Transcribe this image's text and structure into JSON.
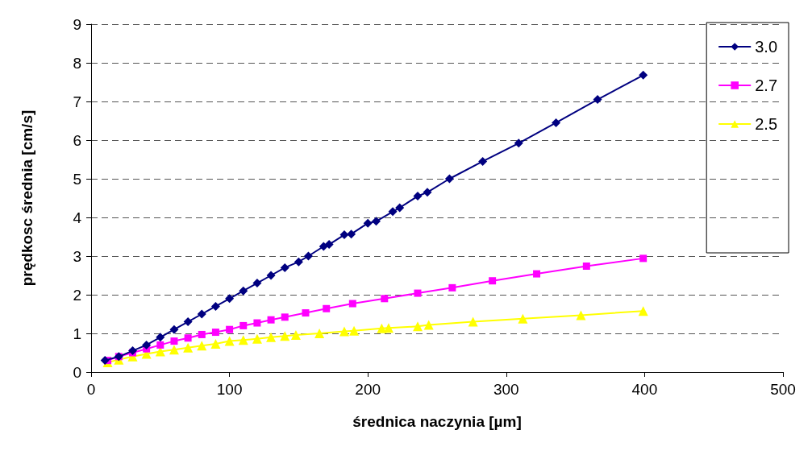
{
  "chart_data": {
    "type": "line",
    "xlabel": "średnica naczynia [µm]",
    "ylabel": "prędkosc średnia [cm/s]",
    "xlim": [
      0,
      500
    ],
    "xticks": [
      0,
      100,
      200,
      300,
      400,
      500
    ],
    "ylim": [
      0,
      9
    ],
    "yticks": [
      0,
      1,
      2,
      3,
      4,
      5,
      6,
      7,
      8,
      9
    ],
    "grid": "y",
    "legend": "top right",
    "series": [
      {
        "name": "3.0",
        "color": "#000080",
        "marker": "diamond",
        "x": [
          10,
          20,
          30,
          40,
          50,
          60,
          70,
          80,
          90,
          100,
          110,
          120,
          130,
          140,
          150,
          157,
          168,
          172,
          183,
          188,
          200,
          206,
          218,
          223,
          236,
          243,
          259,
          283,
          309,
          336,
          366,
          399
        ],
        "values": [
          0.3,
          0.4,
          0.55,
          0.7,
          0.9,
          1.1,
          1.3,
          1.5,
          1.7,
          1.9,
          2.1,
          2.3,
          2.5,
          2.7,
          2.85,
          3.0,
          3.25,
          3.3,
          3.55,
          3.57,
          3.85,
          3.9,
          4.15,
          4.25,
          4.55,
          4.65,
          5.0,
          5.45,
          5.92,
          6.45,
          7.05,
          7.68
        ]
      },
      {
        "name": "2.7",
        "color": "#ff00ff",
        "marker": "square",
        "x": [
          12,
          20,
          30,
          40,
          50,
          60,
          70,
          80,
          90,
          100,
          110,
          120,
          130,
          140,
          155,
          170,
          189,
          212,
          236,
          261,
          290,
          322,
          358,
          399
        ],
        "values": [
          0.3,
          0.4,
          0.5,
          0.6,
          0.7,
          0.8,
          0.88,
          0.97,
          1.03,
          1.1,
          1.2,
          1.27,
          1.35,
          1.42,
          1.53,
          1.64,
          1.77,
          1.9,
          2.04,
          2.18,
          2.36,
          2.54,
          2.74,
          2.94
        ]
      },
      {
        "name": "2.5",
        "color": "#ffff00",
        "marker": "triangle",
        "x": [
          12,
          20,
          30,
          40,
          50,
          60,
          70,
          80,
          90,
          100,
          110,
          120,
          130,
          140,
          148,
          165,
          183,
          190,
          210,
          215,
          236,
          244,
          276,
          312,
          354,
          399
        ],
        "values": [
          0.25,
          0.32,
          0.4,
          0.47,
          0.53,
          0.58,
          0.63,
          0.68,
          0.73,
          0.8,
          0.83,
          0.86,
          0.9,
          0.93,
          0.96,
          1.0,
          1.05,
          1.07,
          1.13,
          1.14,
          1.18,
          1.22,
          1.3,
          1.38,
          1.47,
          1.58
        ]
      }
    ]
  }
}
